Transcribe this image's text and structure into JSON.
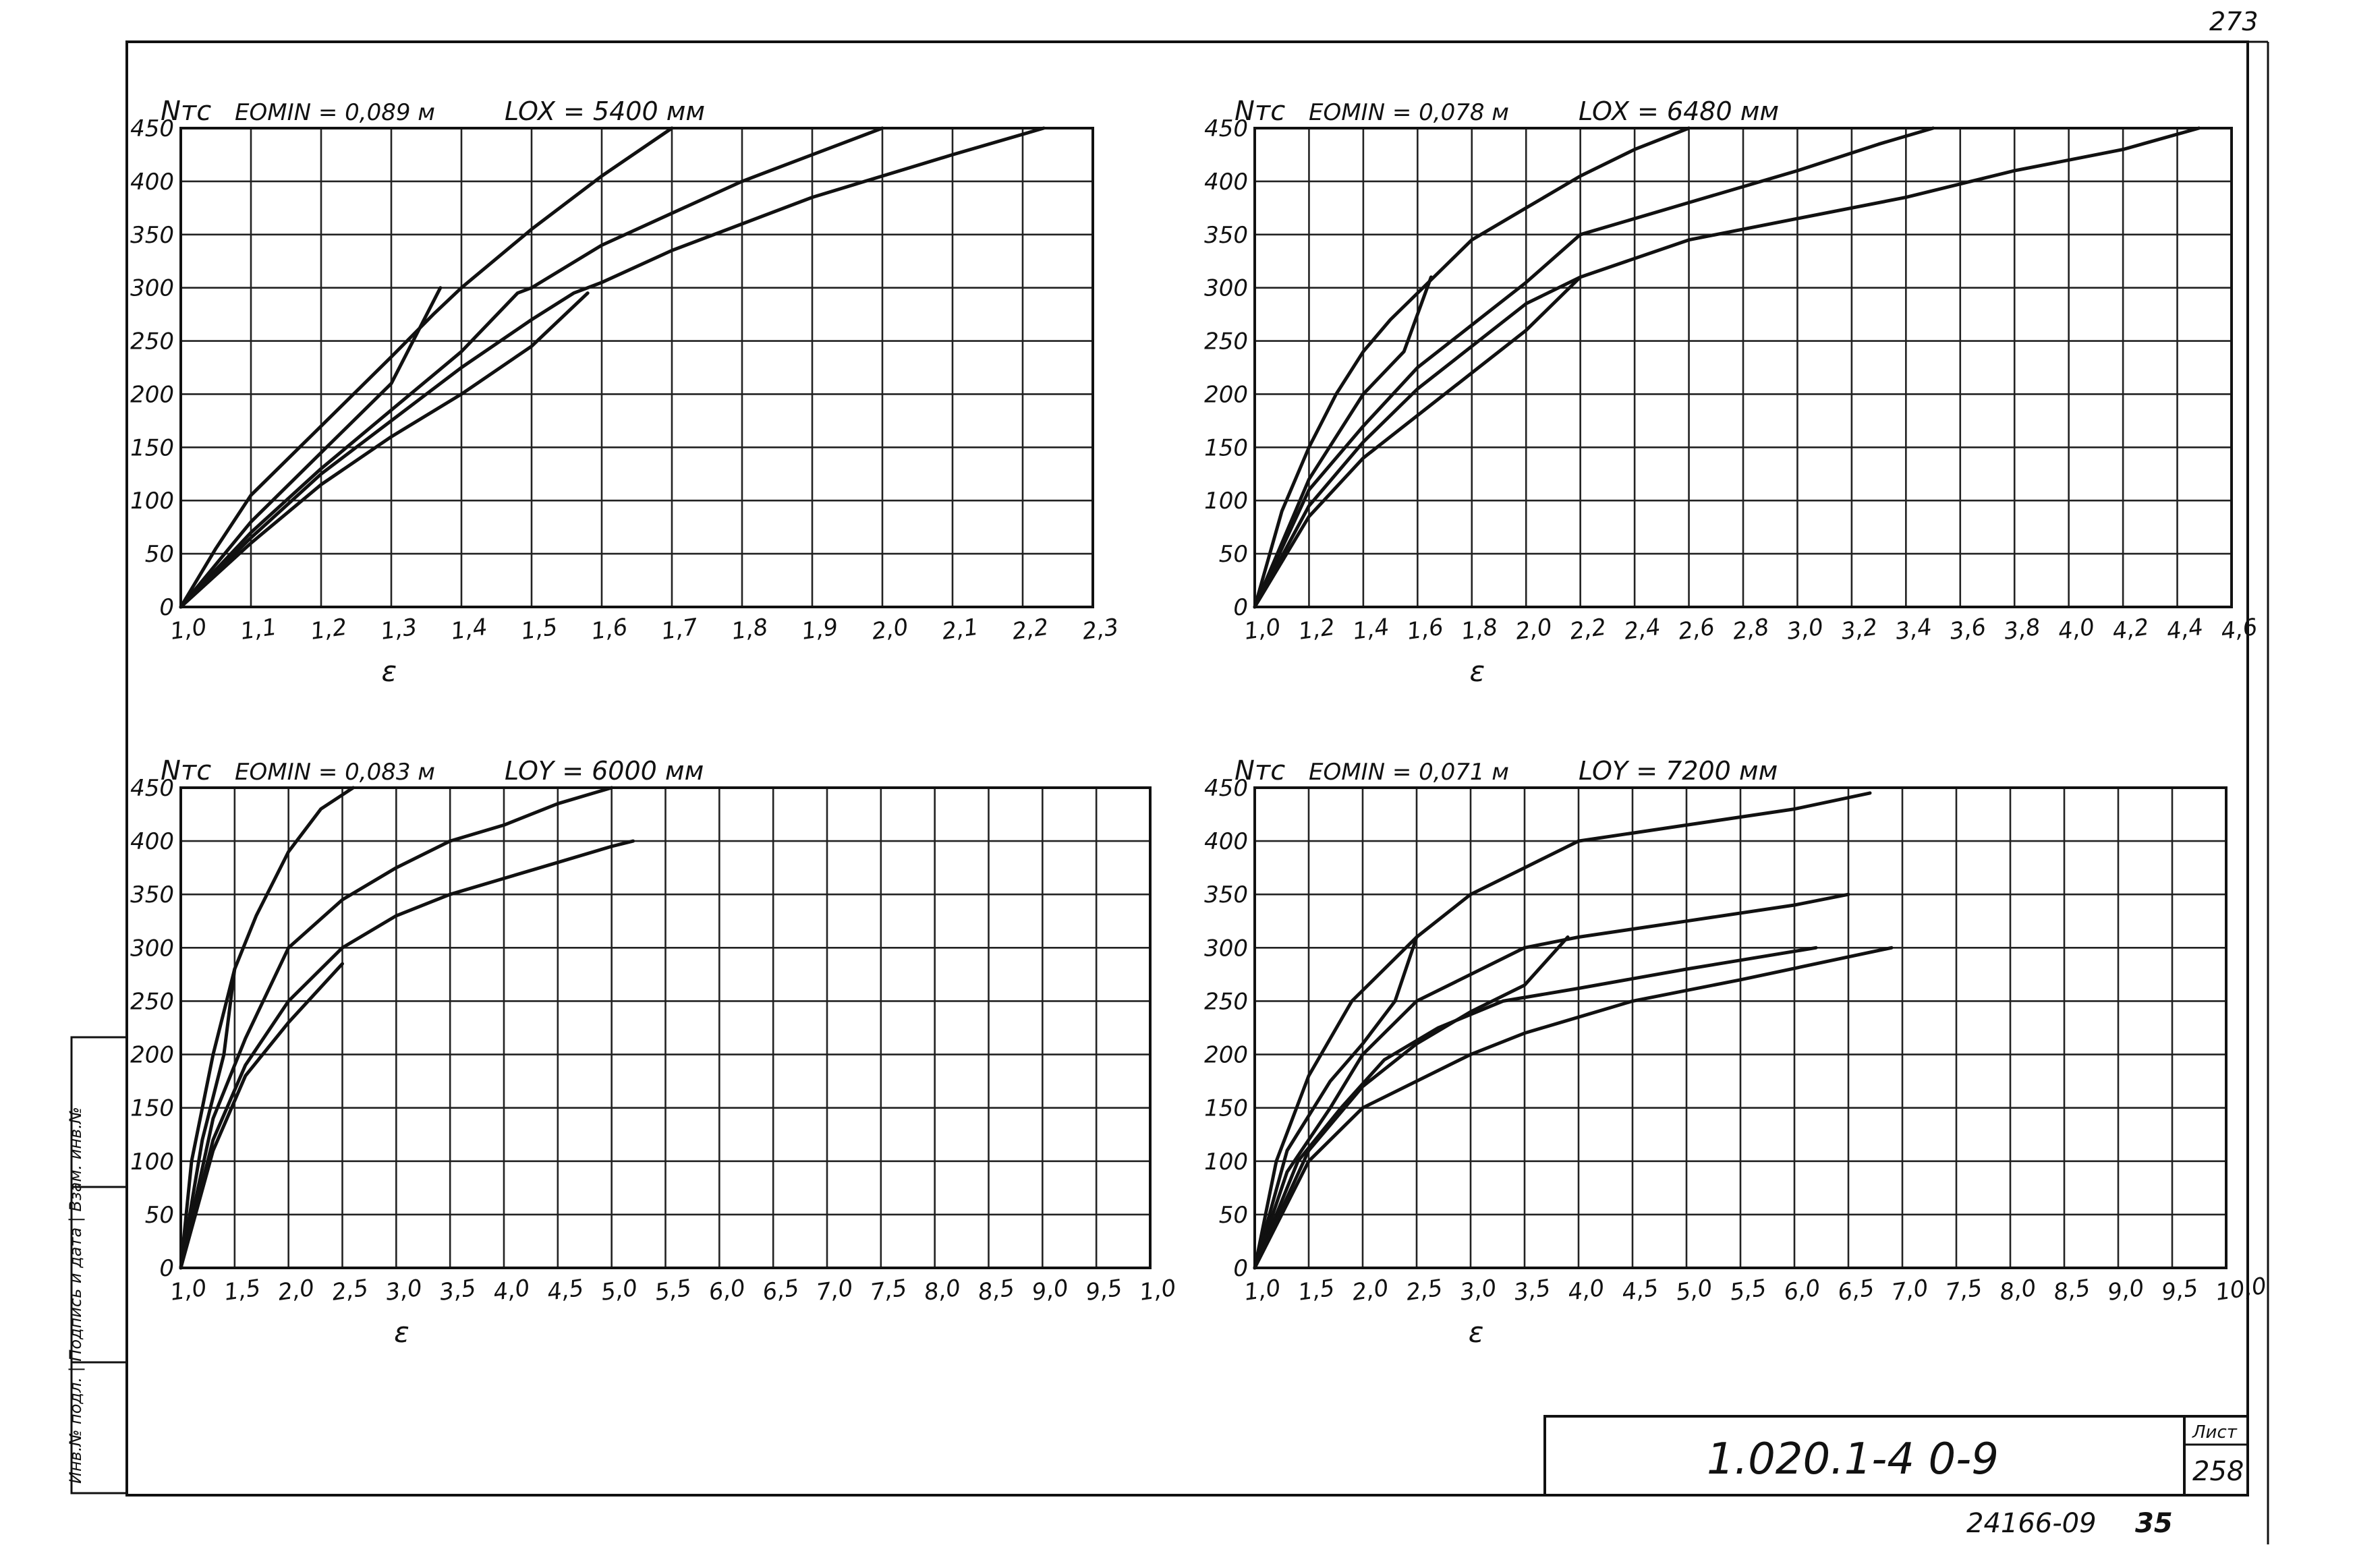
{
  "page": {
    "sheet_top": "273",
    "doc_code": "1.020.1-4  0-9",
    "sheet_label": "Лист",
    "sheet_number": "258",
    "footer_code": "24166-09",
    "footer_num": "35",
    "stamp_text": "Инв.№ подл. | Подпись и дата | Взам. инв.№"
  },
  "chart_data": [
    {
      "type": "line",
      "ylabel": "Nтс",
      "xlabel": "ε",
      "header_e": "EOMIN = 0,089 м",
      "header_l": "LOX = 5400 мм",
      "x_ticks": [
        "1,0",
        "1,1",
        "1,2",
        "1,3",
        "1,4",
        "1,5",
        "1,6",
        "1,7",
        "1,8",
        "1,9",
        "2,0",
        "2,1",
        "2,2",
        "2,3"
      ],
      "y_ticks": [
        "0",
        "50",
        "100",
        "150",
        "200",
        "250",
        "300",
        "350",
        "400",
        "450"
      ],
      "xlim": [
        1.0,
        2.3
      ],
      "ylim": [
        0,
        450
      ],
      "series": [
        {
          "points": [
            [
              1.0,
              0
            ],
            [
              1.05,
              55
            ],
            [
              1.1,
              105
            ],
            [
              1.2,
              170
            ],
            [
              1.3,
              235
            ],
            [
              1.36,
              275
            ],
            [
              1.4,
              300
            ],
            [
              1.5,
              355
            ],
            [
              1.6,
              405
            ],
            [
              1.7,
              450
            ]
          ]
        },
        {
          "points": [
            [
              1.0,
              0
            ],
            [
              1.1,
              80
            ],
            [
              1.2,
              145
            ],
            [
              1.3,
              210
            ],
            [
              1.37,
              300
            ]
          ]
        },
        {
          "points": [
            [
              1.0,
              0
            ],
            [
              1.1,
              70
            ],
            [
              1.2,
              130
            ],
            [
              1.3,
              185
            ],
            [
              1.4,
              240
            ],
            [
              1.48,
              295
            ],
            [
              1.5,
              300
            ],
            [
              1.6,
              340
            ],
            [
              1.7,
              370
            ],
            [
              1.8,
              400
            ],
            [
              1.9,
              425
            ],
            [
              2.0,
              450
            ]
          ]
        },
        {
          "points": [
            [
              1.0,
              0
            ],
            [
              1.1,
              65
            ],
            [
              1.2,
              125
            ],
            [
              1.3,
              175
            ],
            [
              1.4,
              225
            ],
            [
              1.5,
              270
            ],
            [
              1.56,
              295
            ],
            [
              1.6,
              305
            ],
            [
              1.7,
              335
            ],
            [
              1.8,
              360
            ],
            [
              1.9,
              385
            ],
            [
              2.0,
              405
            ],
            [
              2.1,
              425
            ],
            [
              2.23,
              450
            ]
          ]
        },
        {
          "points": [
            [
              1.0,
              0
            ],
            [
              1.1,
              60
            ],
            [
              1.2,
              115
            ],
            [
              1.3,
              160
            ],
            [
              1.4,
              200
            ],
            [
              1.5,
              245
            ],
            [
              1.58,
              295
            ]
          ]
        }
      ]
    },
    {
      "type": "line",
      "ylabel": "Nтс",
      "xlabel": "ε",
      "header_e": "EOMIN = 0,078 м",
      "header_l": "LOX = 6480 мм",
      "x_ticks": [
        "1,0",
        "1,2",
        "1,4",
        "1,6",
        "1,8",
        "2,0",
        "2,2",
        "2,4",
        "2,6",
        "2,8",
        "3,0",
        "3,2",
        "3,4",
        "3,6",
        "3,8",
        "4,0",
        "4,2",
        "4,4",
        "4,6"
      ],
      "y_ticks": [
        "0",
        "50",
        "100",
        "150",
        "200",
        "250",
        "300",
        "350",
        "400",
        "450"
      ],
      "xlim": [
        1.0,
        4.6
      ],
      "ylim": [
        0,
        450
      ],
      "series": [
        {
          "points": [
            [
              1.0,
              0
            ],
            [
              1.1,
              90
            ],
            [
              1.2,
              150
            ],
            [
              1.3,
              200
            ],
            [
              1.4,
              240
            ],
            [
              1.5,
              270
            ],
            [
              1.6,
              295
            ],
            [
              1.7,
              320
            ],
            [
              1.8,
              345
            ],
            [
              2.0,
              375
            ],
            [
              2.2,
              405
            ],
            [
              2.4,
              430
            ],
            [
              2.6,
              450
            ]
          ]
        },
        {
          "points": [
            [
              1.0,
              0
            ],
            [
              1.2,
              120
            ],
            [
              1.4,
              200
            ],
            [
              1.55,
              240
            ],
            [
              1.65,
              310
            ]
          ]
        },
        {
          "points": [
            [
              1.0,
              0
            ],
            [
              1.2,
              110
            ],
            [
              1.4,
              170
            ],
            [
              1.6,
              225
            ],
            [
              1.8,
              265
            ],
            [
              2.0,
              305
            ],
            [
              2.2,
              350
            ],
            [
              2.6,
              380
            ],
            [
              3.0,
              410
            ],
            [
              3.3,
              435
            ],
            [
              3.5,
              450
            ]
          ]
        },
        {
          "points": [
            [
              1.0,
              0
            ],
            [
              1.2,
              95
            ],
            [
              1.4,
              155
            ],
            [
              1.6,
              205
            ],
            [
              1.8,
              245
            ],
            [
              2.0,
              285
            ],
            [
              2.2,
              310
            ],
            [
              2.6,
              345
            ],
            [
              3.0,
              365
            ],
            [
              3.4,
              385
            ],
            [
              3.8,
              410
            ],
            [
              4.2,
              430
            ],
            [
              4.48,
              450
            ]
          ]
        },
        {
          "points": [
            [
              1.0,
              0
            ],
            [
              1.2,
              85
            ],
            [
              1.4,
              140
            ],
            [
              1.6,
              180
            ],
            [
              1.8,
              220
            ],
            [
              2.0,
              260
            ],
            [
              2.2,
              310
            ]
          ]
        }
      ]
    },
    {
      "type": "line",
      "ylabel": "Nтс",
      "xlabel": "ε",
      "header_e": "EOMIN = 0,083 м",
      "header_l": "LOY = 6000 мм",
      "x_ticks": [
        "1,0",
        "1,5",
        "2,0",
        "2,5",
        "3,0",
        "3,5",
        "4,0",
        "4,5",
        "5,0",
        "5,5",
        "6,0",
        "6,5",
        "7,0",
        "7,5",
        "8,0",
        "8,5",
        "9,0",
        "9,5",
        "1,0"
      ],
      "y_ticks": [
        "0",
        "50",
        "100",
        "150",
        "200",
        "250",
        "300",
        "350",
        "400",
        "450"
      ],
      "xlim": [
        1.0,
        10.0
      ],
      "ylim": [
        0,
        450
      ],
      "series": [
        {
          "points": [
            [
              1.0,
              0
            ],
            [
              1.1,
              100
            ],
            [
              1.3,
              200
            ],
            [
              1.5,
              280
            ],
            [
              1.7,
              330
            ],
            [
              2.0,
              390
            ],
            [
              2.3,
              430
            ],
            [
              2.6,
              450
            ]
          ]
        },
        {
          "points": [
            [
              1.0,
              0
            ],
            [
              1.2,
              120
            ],
            [
              1.4,
              200
            ],
            [
              1.5,
              280
            ]
          ]
        },
        {
          "points": [
            [
              1.0,
              0
            ],
            [
              1.3,
              140
            ],
            [
              1.6,
              215
            ],
            [
              2.0,
              300
            ],
            [
              2.5,
              345
            ],
            [
              3.0,
              375
            ],
            [
              3.5,
              400
            ],
            [
              4.0,
              415
            ],
            [
              4.5,
              435
            ],
            [
              5.0,
              450
            ]
          ]
        },
        {
          "points": [
            [
              1.0,
              0
            ],
            [
              1.3,
              120
            ],
            [
              1.6,
              190
            ],
            [
              2.0,
              250
            ],
            [
              2.5,
              300
            ],
            [
              3.0,
              330
            ],
            [
              3.5,
              350
            ],
            [
              4.0,
              365
            ],
            [
              4.5,
              380
            ],
            [
              5.0,
              395
            ],
            [
              5.2,
              400
            ]
          ]
        },
        {
          "points": [
            [
              1.0,
              0
            ],
            [
              1.3,
              110
            ],
            [
              1.6,
              180
            ],
            [
              2.0,
              230
            ],
            [
              2.5,
              285
            ]
          ]
        }
      ]
    },
    {
      "type": "line",
      "ylabel": "Nтс",
      "xlabel": "ε",
      "header_e": "EOMIN = 0,071 м",
      "header_l": "LOY = 7200 мм",
      "x_ticks": [
        "1,0",
        "1,5",
        "2,0",
        "2,5",
        "3,0",
        "3,5",
        "4,0",
        "4,5",
        "5,0",
        "5,5",
        "6,0",
        "6,5",
        "7,0",
        "7,5",
        "8,0",
        "8,5",
        "9,0",
        "9,5",
        "10,0"
      ],
      "y_ticks": [
        "0",
        "50",
        "100",
        "150",
        "200",
        "250",
        "300",
        "350",
        "400",
        "450"
      ],
      "xlim": [
        1.0,
        10.0
      ],
      "ylim": [
        0,
        450
      ],
      "series": [
        {
          "points": [
            [
              1.0,
              0
            ],
            [
              1.2,
              100
            ],
            [
              1.5,
              180
            ],
            [
              1.9,
              250
            ],
            [
              2.5,
              310
            ],
            [
              3.0,
              350
            ],
            [
              3.5,
              375
            ],
            [
              4.0,
              400
            ],
            [
              5.0,
              415
            ],
            [
              6.0,
              430
            ],
            [
              6.7,
              445
            ]
          ]
        },
        {
          "points": [
            [
              1.0,
              0
            ],
            [
              1.3,
              110
            ],
            [
              1.7,
              175
            ],
            [
              2.0,
              210
            ],
            [
              2.3,
              250
            ],
            [
              2.5,
              310
            ]
          ]
        },
        {
          "points": [
            [
              1.0,
              0
            ],
            [
              1.3,
              90
            ],
            [
              1.7,
              150
            ],
            [
              2.0,
              200
            ],
            [
              2.5,
              250
            ],
            [
              3.0,
              275
            ],
            [
              3.5,
              300
            ],
            [
              4.0,
              310
            ],
            [
              5.0,
              325
            ],
            [
              6.0,
              340
            ],
            [
              6.5,
              350
            ]
          ]
        },
        {
          "points": [
            [
              1.0,
              0
            ],
            [
              1.4,
              100
            ],
            [
              1.8,
              150
            ],
            [
              2.2,
              195
            ],
            [
              2.7,
              225
            ],
            [
              3.3,
              250
            ],
            [
              4.0,
              262
            ],
            [
              5.0,
              280
            ],
            [
              6.2,
              300
            ]
          ]
        },
        {
          "points": [
            [
              1.0,
              0
            ],
            [
              1.5,
              100
            ],
            [
              2.0,
              150
            ],
            [
              2.5,
              175
            ],
            [
              3.0,
              200
            ],
            [
              3.5,
              220
            ],
            [
              4.0,
              235
            ],
            [
              4.5,
              250
            ],
            [
              5.5,
              270
            ],
            [
              6.9,
              300
            ]
          ]
        },
        {
          "points": [
            [
              1.0,
              0
            ],
            [
              1.5,
              110
            ],
            [
              2.0,
              170
            ],
            [
              2.5,
              210
            ],
            [
              3.0,
              240
            ],
            [
              3.5,
              265
            ],
            [
              3.9,
              310
            ]
          ]
        }
      ]
    }
  ]
}
